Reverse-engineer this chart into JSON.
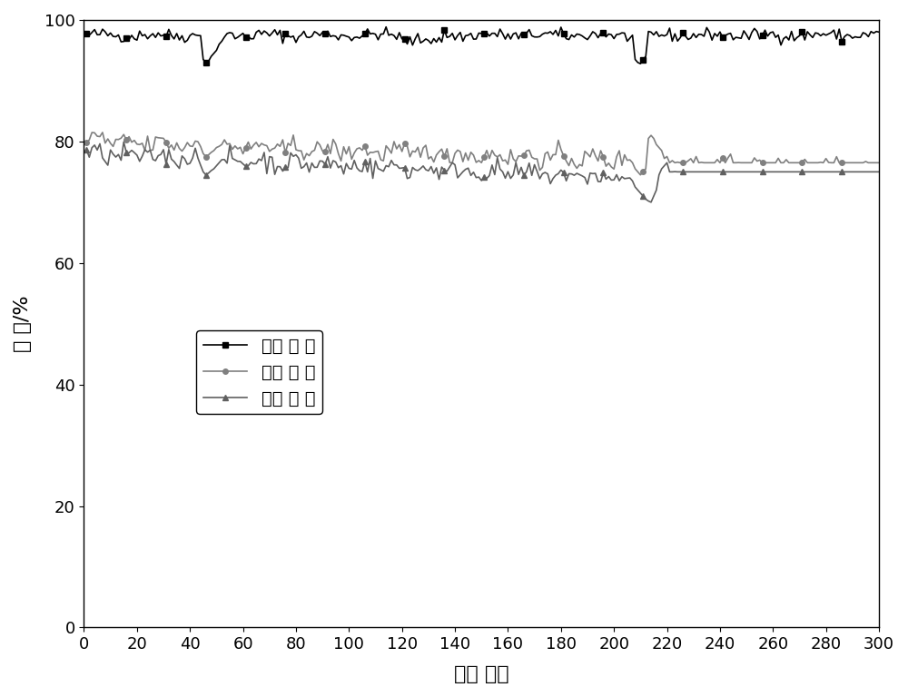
{
  "title": "",
  "xlabel": "循环 次数",
  "ylabel": "效 率/%",
  "xlim": [
    0,
    300
  ],
  "ylim": [
    0,
    100
  ],
  "xticks": [
    0,
    20,
    40,
    60,
    80,
    100,
    120,
    140,
    160,
    180,
    200,
    220,
    240,
    260,
    280,
    300
  ],
  "yticks": [
    0,
    20,
    40,
    60,
    80,
    100
  ],
  "legend_labels": [
    "库伦 效 率",
    "电压 效 率",
    "能量 效 率"
  ],
  "coulombic_color": "#000000",
  "voltage_color": "#808080",
  "energy_color": "#606060",
  "background_color": "#ffffff"
}
